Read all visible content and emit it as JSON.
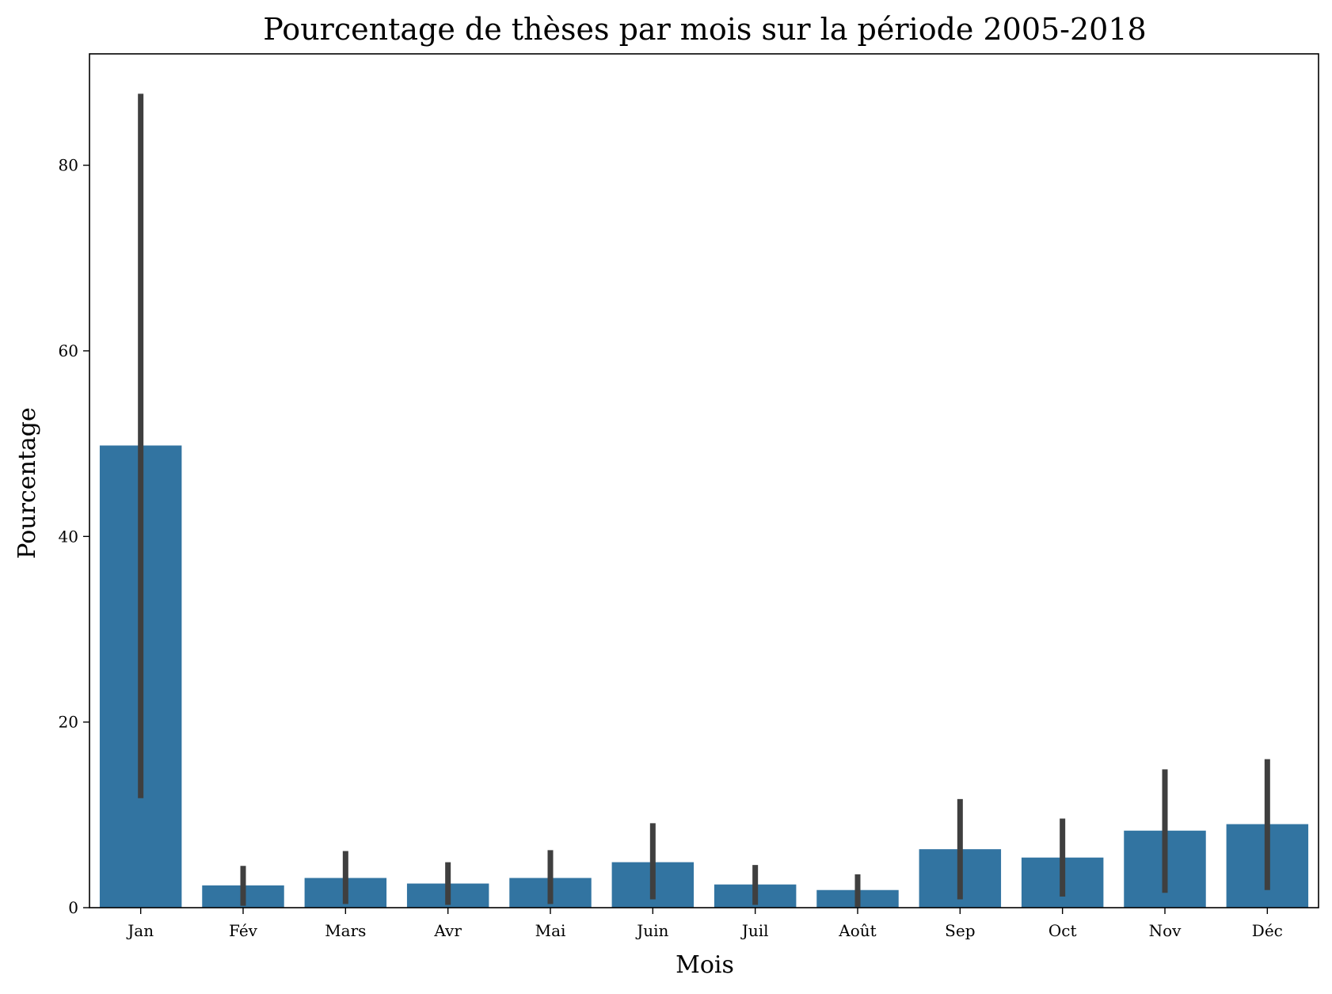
{
  "chart_data": {
    "type": "bar",
    "title": "Pourcentage de thèses par mois sur la période 2005-2018",
    "xlabel": "Mois",
    "ylabel": "Pourcentage",
    "categories": [
      "Jan",
      "Fév",
      "Mars",
      "Avr",
      "Mai",
      "Juin",
      "Juil",
      "Août",
      "Sep",
      "Oct",
      "Nov",
      "Déc"
    ],
    "values": [
      49.8,
      2.4,
      3.2,
      2.6,
      3.2,
      4.9,
      2.5,
      1.9,
      6.3,
      5.4,
      8.3,
      9.0
    ],
    "error_low": [
      11.8,
      0.2,
      0.4,
      0.3,
      0.4,
      0.9,
      0.3,
      0.1,
      0.9,
      1.2,
      1.6,
      1.9
    ],
    "error_high": [
      87.7,
      4.5,
      6.1,
      4.9,
      6.2,
      9.1,
      4.6,
      3.6,
      11.7,
      9.6,
      14.9,
      16.0
    ],
    "ylim": [
      0,
      92
    ],
    "yticks": [
      0,
      20,
      40,
      60,
      80
    ],
    "grid": false,
    "colors": {
      "bar": "#3274a1",
      "errorbar": "#3f3f3f",
      "axes": "#000000"
    }
  }
}
